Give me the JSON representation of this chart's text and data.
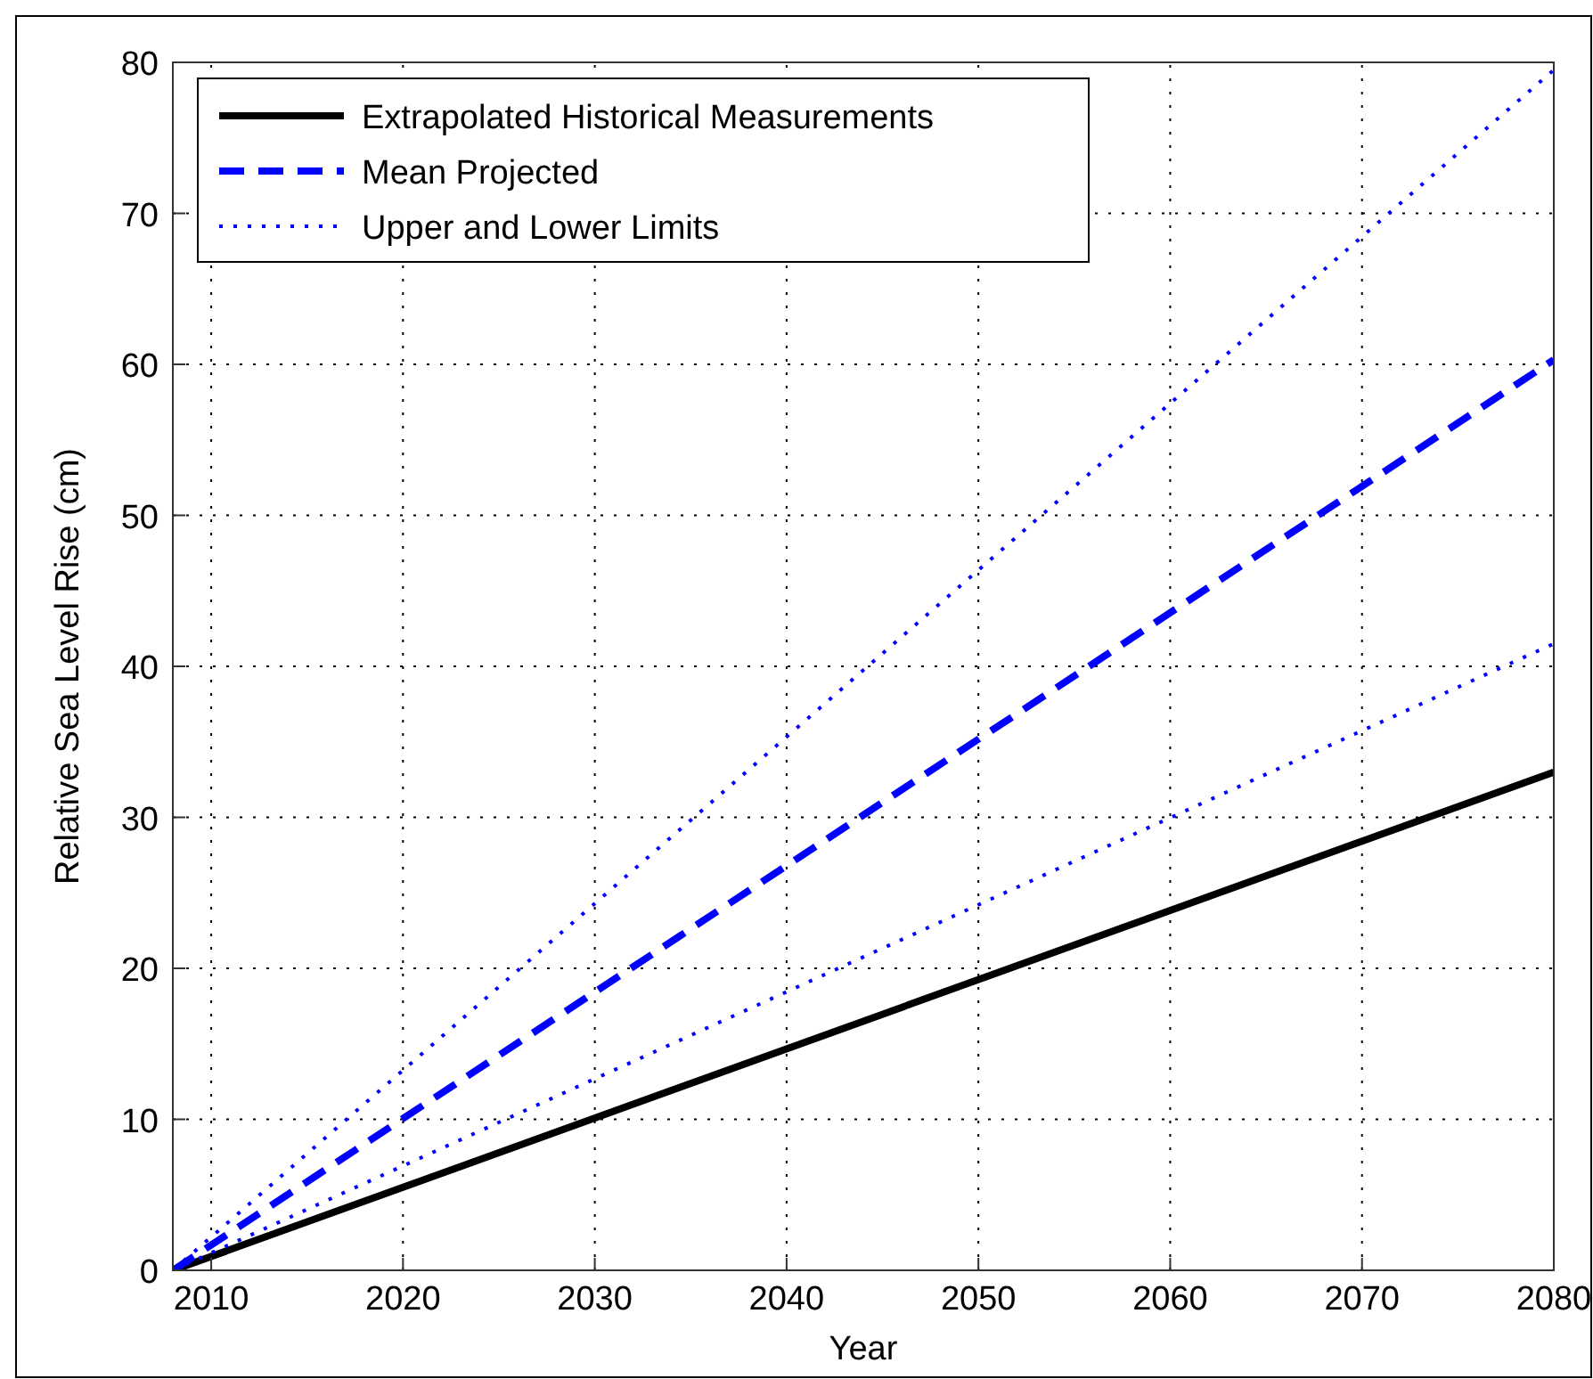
{
  "chart_data": {
    "type": "line",
    "xlabel": "Year",
    "ylabel": "Relative Sea Level Rise (cm)",
    "x": [
      2008,
      2080
    ],
    "xlim": [
      2008,
      2080
    ],
    "xticks": [
      2010,
      2020,
      2030,
      2040,
      2050,
      2060,
      2070,
      2080
    ],
    "ylim": [
      0,
      80
    ],
    "yticks": [
      0,
      10,
      20,
      30,
      40,
      50,
      60,
      70,
      80
    ],
    "grid": true,
    "legend": "top left",
    "series": [
      {
        "name": "Extrapolated Historical Measurements",
        "color": "#000000",
        "line_style": "solid",
        "values": [
          0,
          33
        ]
      },
      {
        "name": "Mean Projected",
        "color": "#0000ff",
        "line_style": "dashed",
        "values": [
          0,
          60.3
        ]
      },
      {
        "name": "Upper and Lower Limits",
        "color": "#0000ff",
        "line_style": "dotted",
        "values": [
          0,
          79.5
        ]
      },
      {
        "color": "#0000ff",
        "line_style": "dotted",
        "values": [
          0,
          41.5
        ]
      }
    ]
  }
}
